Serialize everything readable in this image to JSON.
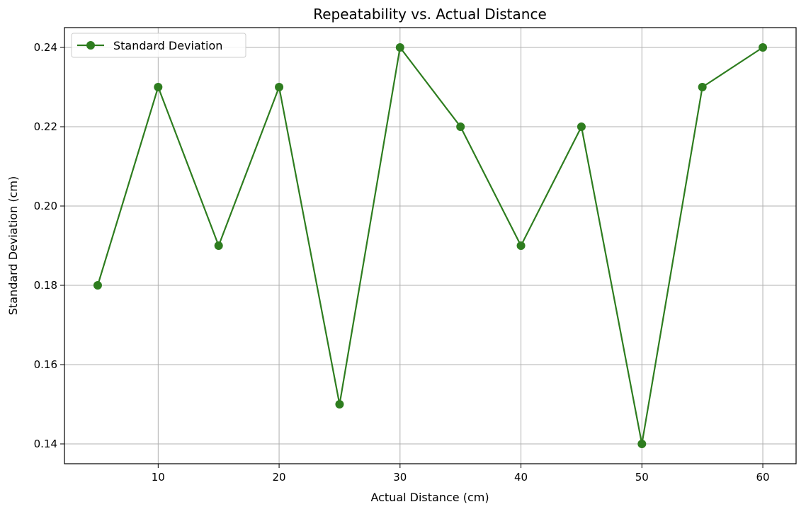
{
  "chart_data": {
    "type": "line",
    "title": "Repeatability vs. Actual Distance",
    "xlabel": "Actual Distance (cm)",
    "ylabel": "Standard Deviation (cm)",
    "x": [
      5,
      10,
      15,
      20,
      25,
      30,
      35,
      40,
      45,
      50,
      55,
      60
    ],
    "series": [
      {
        "name": "Standard Deviation",
        "values": [
          0.18,
          0.23,
          0.19,
          0.23,
          0.15,
          0.24,
          0.22,
          0.19,
          0.22,
          0.14,
          0.23,
          0.24
        ],
        "color": "#2e7d1f",
        "marker": "circle"
      }
    ],
    "xlim": [
      2.25,
      62.75
    ],
    "ylim": [
      0.135,
      0.245
    ],
    "xticks": [
      10,
      20,
      30,
      40,
      50,
      60
    ],
    "xtick_labels": [
      "10",
      "20",
      "30",
      "40",
      "50",
      "60"
    ],
    "yticks": [
      0.14,
      0.16,
      0.18,
      0.2,
      0.22,
      0.24
    ],
    "ytick_labels": [
      "0.14",
      "0.16",
      "0.18",
      "0.20",
      "0.22",
      "0.24"
    ],
    "grid": true,
    "legend_position": "upper left"
  }
}
